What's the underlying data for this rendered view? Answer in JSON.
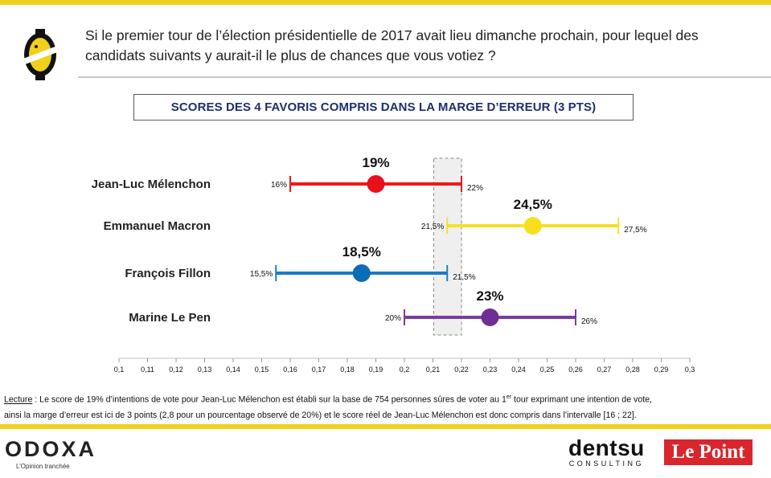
{
  "question": "Si le premier tour de l’élection présidentielle de 2017 avait lieu dimanche prochain, pour lequel des candidats suivants y aurait-il le plus de chances que vous votiez ?",
  "subtitle": "SCORES DES 4 FAVORIS COMPRIS DANS LA MARGE D’ERREUR (3 PTS)",
  "chart_data": {
    "type": "dot-range",
    "title": "SCORES DES 4 FAVORIS COMPRIS DANS LA MARGE D’ERREUR (3 PTS)",
    "xlim": [
      0.1,
      0.3
    ],
    "xticks": [
      0.1,
      0.11,
      0.12,
      0.13,
      0.14,
      0.15,
      0.16,
      0.17,
      0.18,
      0.19,
      0.2,
      0.21,
      0.22,
      0.23,
      0.24,
      0.25,
      0.26,
      0.27,
      0.28,
      0.29,
      0.3
    ],
    "xtick_labels": [
      "0,1",
      "0,11",
      "0,12",
      "0,13",
      "0,14",
      "0,15",
      "0,16",
      "0,17",
      "0,18",
      "0,19",
      "0,2",
      "0,21",
      "0,22",
      "0,23",
      "0,24",
      "0,25",
      "0,26",
      "0,27",
      "0,28",
      "0,29",
      "0,3"
    ],
    "overlap_zone": [
      0.21,
      0.22
    ],
    "candidates": [
      {
        "name": "Jean-Luc Mélenchon",
        "score": 0.19,
        "low": 0.16,
        "high": 0.22,
        "score_label": "19%",
        "low_label": "16%",
        "high_label": "22%",
        "color": "#f01818",
        "dot_color": "#e8101a"
      },
      {
        "name": "Emmanuel Macron",
        "score": 0.245,
        "low": 0.215,
        "high": 0.275,
        "score_label": "24,5%",
        "low_label": "21,5%",
        "high_label": "27,5%",
        "color": "#f5e027",
        "dot_color": "#f7df1e"
      },
      {
        "name": "François Fillon",
        "score": 0.185,
        "low": 0.155,
        "high": 0.215,
        "score_label": "18,5%",
        "low_label": "15,5%",
        "high_label": "21,5%",
        "color": "#1a7cc4",
        "dot_color": "#0c6cb6"
      },
      {
        "name": "Marine Le Pen",
        "score": 0.23,
        "low": 0.2,
        "high": 0.26,
        "score_label": "23%",
        "low_label": "20%",
        "high_label": "26%",
        "color": "#7b3c9e",
        "dot_color": "#6f2e96"
      }
    ]
  },
  "reading": {
    "label": "Lecture",
    "text_1": " : Le score de 19% d’intentions de vote pour Jean-Luc Mélenchon est établi sur la base de 754 personnes sûres de voter au 1",
    "sup": "er",
    "text_2": " tour exprimant une intention de vote,",
    "line_2": "ainsi la marge d’erreur est ici de 3 points (2,8 pour un pourcentage observé de 20%) et le score réel de Jean-Luc Mélenchon est donc compris dans l’intervalle [16 ; 22]."
  },
  "footer": {
    "odoxa_name": "ODOXA",
    "odoxa_tagline": "L’Opinion tranchée",
    "dentsu_name": "dentsu",
    "dentsu_sub": "CONSULTING",
    "lepoint": "Le Point"
  },
  "colors": {
    "accent_yellow": "#f2cf1a",
    "title_navy": "#1f2f6e",
    "lepoint_red": "#d9262c"
  }
}
